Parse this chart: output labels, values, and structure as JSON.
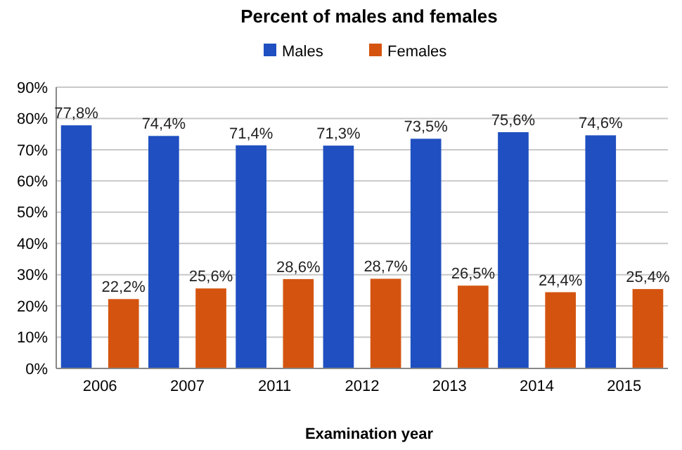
{
  "chart_data": {
    "type": "bar",
    "title": "Percent of males and females",
    "xlabel": "Examination year",
    "categories": [
      "2006",
      "2007",
      "2011",
      "2012",
      "2013",
      "2014",
      "2015"
    ],
    "series": [
      {
        "name": "Males",
        "color": "#1f4fc0",
        "values": [
          77.8,
          74.4,
          71.4,
          71.3,
          73.5,
          75.6,
          74.6
        ],
        "value_labels": [
          "77,8%",
          "74,4%",
          "71,4%",
          "71,3%",
          "73,5%",
          "75,6%",
          "74,6%"
        ]
      },
      {
        "name": "Females",
        "color": "#d4540f",
        "values": [
          22.2,
          25.6,
          28.6,
          28.7,
          26.5,
          24.4,
          25.4
        ],
        "value_labels": [
          "22,2%",
          "25,6%",
          "28,6%",
          "28,7%",
          "26,5%",
          "24,4%",
          "25,4%"
        ]
      }
    ],
    "ylim": [
      0,
      90
    ],
    "yticks": [
      {
        "value": 0,
        "label": "0%"
      },
      {
        "value": 10,
        "label": "10%"
      },
      {
        "value": 20,
        "label": "20%"
      },
      {
        "value": 30,
        "label": "30%"
      },
      {
        "value": 40,
        "label": "40%"
      },
      {
        "value": 50,
        "label": "50%"
      },
      {
        "value": 60,
        "label": "60%"
      },
      {
        "value": 70,
        "label": "70%"
      },
      {
        "value": 80,
        "label": "80%"
      },
      {
        "value": 90,
        "label": "90%"
      }
    ],
    "grid": "y",
    "legend": "top"
  }
}
